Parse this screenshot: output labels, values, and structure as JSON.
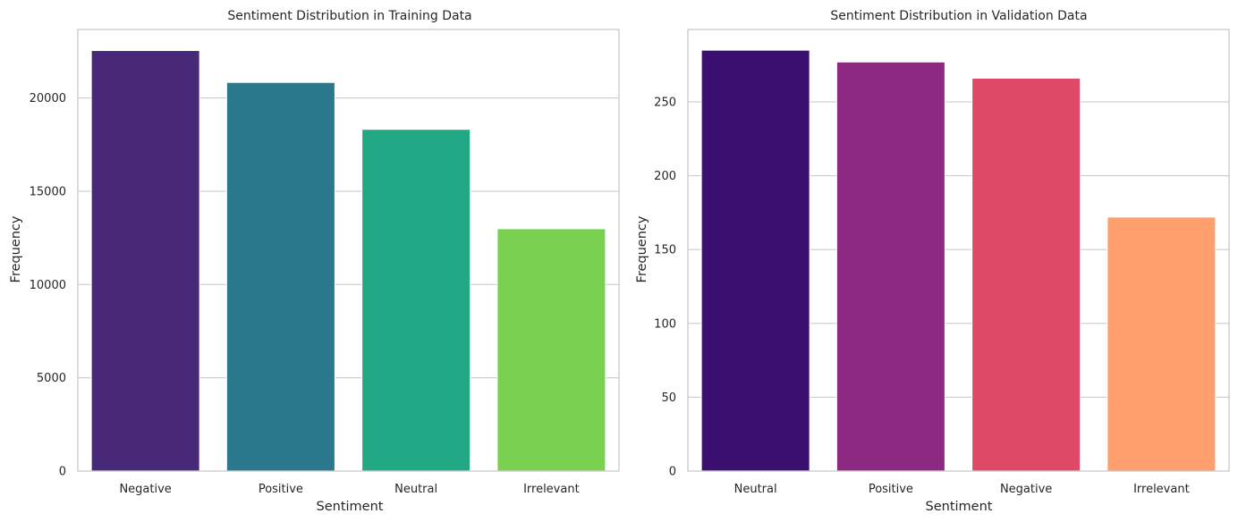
{
  "chart_data": [
    {
      "type": "bar",
      "title": "Sentiment Distribution in Training Data",
      "xlabel": "Sentiment",
      "ylabel": "Frequency",
      "categories": [
        "Negative",
        "Positive",
        "Neutral",
        "Irrelevant"
      ],
      "values": [
        22542,
        20832,
        18318,
        12990
      ],
      "colors": [
        "#482878",
        "#2a788e",
        "#22a884",
        "#7ad151"
      ],
      "ylim": [
        0,
        23670
      ],
      "yticks": [
        0,
        5000,
        10000,
        15000,
        20000
      ],
      "ytick_labels": [
        "0",
        "5000",
        "10000",
        "15000",
        "20000"
      ],
      "grid": "y",
      "legend": "none"
    },
    {
      "type": "bar",
      "title": "Sentiment Distribution in Validation Data",
      "xlabel": "Sentiment",
      "ylabel": "Frequency",
      "categories": [
        "Neutral",
        "Positive",
        "Negative",
        "Irrelevant"
      ],
      "values": [
        285,
        277,
        266,
        172
      ],
      "colors": [
        "#3b0f70",
        "#8c2981",
        "#de4968",
        "#fe9f6d"
      ],
      "ylim": [
        0,
        299
      ],
      "yticks": [
        0,
        50,
        100,
        150,
        200,
        250
      ],
      "ytick_labels": [
        "0",
        "50",
        "100",
        "150",
        "200",
        "250"
      ],
      "grid": "y",
      "legend": "none"
    }
  ]
}
